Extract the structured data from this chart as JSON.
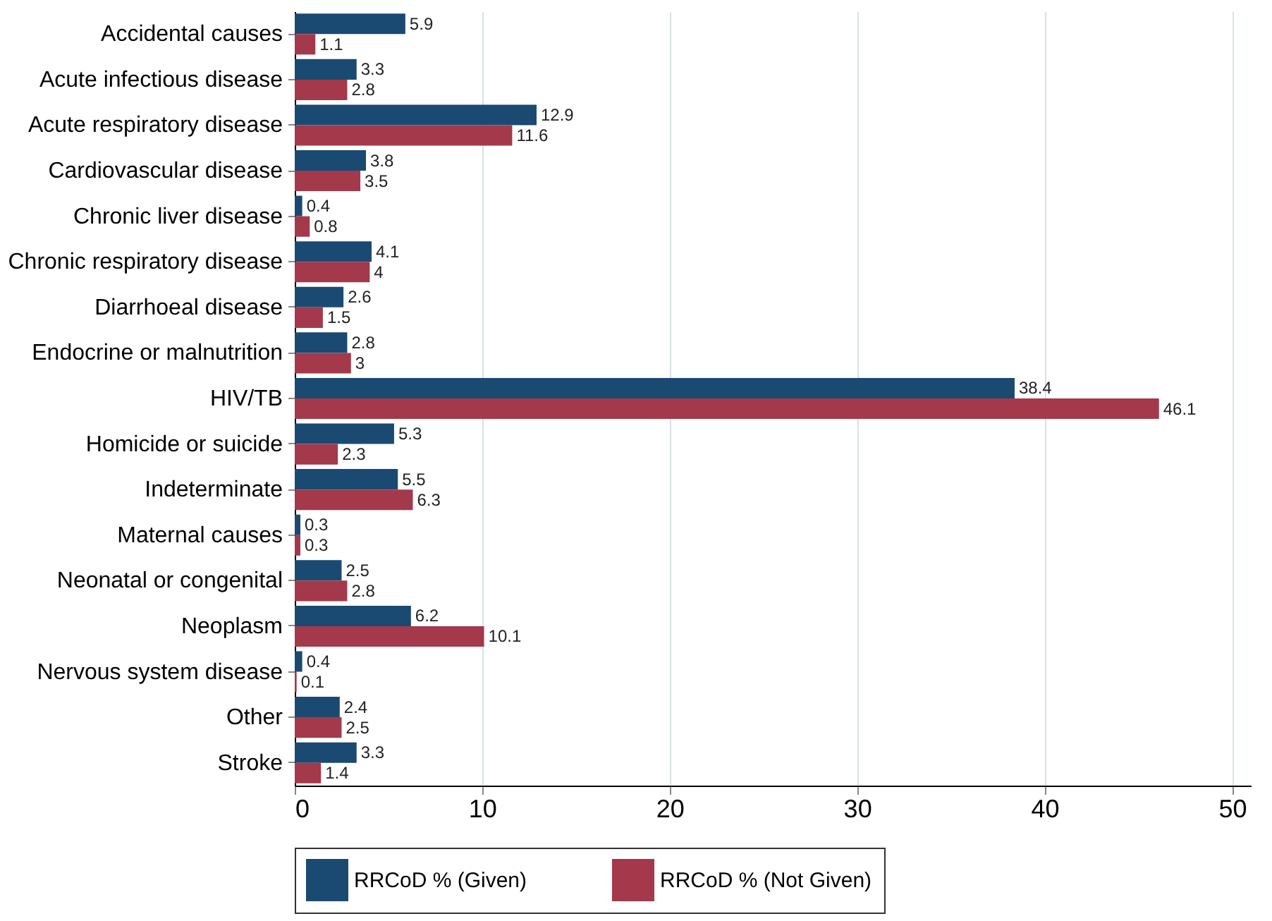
{
  "chart_data": {
    "type": "bar",
    "orientation": "horizontal",
    "categories": [
      "Accidental causes",
      "Acute infectious disease",
      "Acute respiratory disease",
      "Cardiovascular disease",
      "Chronic liver disease",
      "Chronic respiratory disease",
      "Diarrhoeal disease",
      "Endocrine or malnutrition",
      "HIV/TB",
      "Homicide or suicide",
      "Indeterminate",
      "Maternal causes",
      "Neonatal or congenital",
      "Neoplasm",
      "Nervous system disease",
      "Other",
      "Stroke"
    ],
    "series": [
      {
        "name": "RRCoD % (Given)",
        "color": "#1a4a72",
        "values": [
          5.9,
          3.3,
          12.9,
          3.8,
          0.4,
          4.1,
          2.6,
          2.8,
          38.4,
          5.3,
          5.5,
          0.3,
          2.5,
          6.2,
          0.4,
          2.4,
          3.3
        ]
      },
      {
        "name": "RRCoD % (Not Given)",
        "color": "#a3394a",
        "values": [
          1.1,
          2.8,
          11.6,
          3.5,
          0.8,
          4,
          1.5,
          3,
          46.1,
          2.3,
          6.3,
          0.3,
          2.8,
          10.1,
          0.1,
          2.5,
          1.4
        ]
      }
    ],
    "xlim": [
      0,
      51
    ],
    "xticks": [
      0,
      10,
      20,
      30,
      40,
      50
    ],
    "grid": "x",
    "legend": "bottom",
    "data_labels": true
  }
}
